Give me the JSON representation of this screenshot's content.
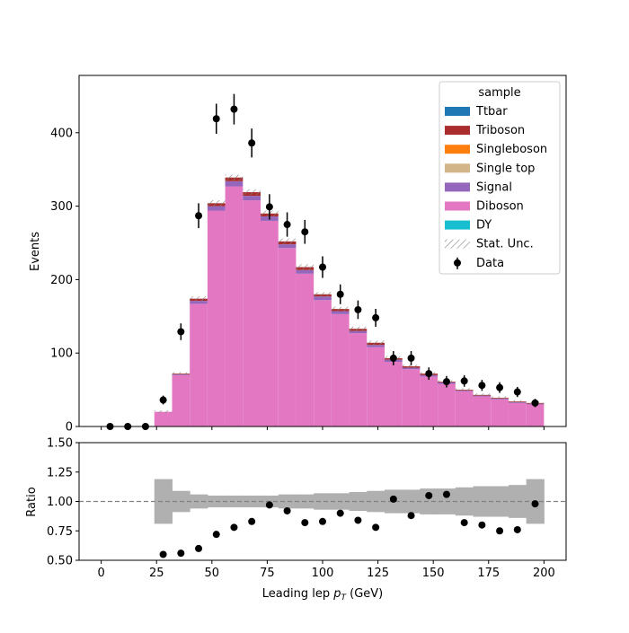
{
  "chart_data": [
    {
      "type": "bar",
      "stacked": true,
      "bin_edges": [
        0,
        8,
        16,
        24,
        32,
        40,
        48,
        56,
        64,
        72,
        80,
        88,
        96,
        104,
        112,
        120,
        128,
        136,
        144,
        152,
        160,
        168,
        176,
        184,
        192,
        200
      ],
      "xlabel": "",
      "ylabel": "Events",
      "xlim": [
        -10,
        210
      ],
      "ylim": [
        0,
        478
      ],
      "xticks": [
        0,
        25,
        50,
        75,
        100,
        125,
        150,
        175,
        200
      ],
      "yticks": [
        0,
        100,
        200,
        300,
        400
      ],
      "series": [
        {
          "name": "DY",
          "color": "#17becf",
          "values": [
            0,
            0,
            0,
            0,
            0,
            0,
            0,
            0,
            0,
            0,
            0,
            0,
            0,
            0,
            0,
            0,
            0,
            0,
            0,
            0,
            0,
            0,
            0,
            0,
            0
          ]
        },
        {
          "name": "Diboson",
          "color": "#e377c2",
          "values": [
            0,
            0,
            0,
            20,
            70,
            167,
            294,
            327,
            308,
            280,
            243,
            208,
            172,
            153,
            127,
            108,
            88,
            78,
            68,
            58,
            48,
            41,
            37,
            32,
            30
          ]
        },
        {
          "name": "Signal",
          "color": "#9467bd",
          "values": [
            0,
            0,
            0,
            0,
            1,
            4,
            6,
            7,
            6,
            6,
            5,
            5,
            5,
            4,
            3,
            3,
            3,
            2,
            2,
            2,
            1,
            1,
            1,
            1,
            1
          ]
        },
        {
          "name": "Single top",
          "color": "#d3b58a",
          "values": [
            0,
            0,
            0,
            0,
            0,
            0,
            0,
            0,
            0,
            0,
            0,
            0,
            0,
            0,
            0,
            0,
            0,
            0,
            0,
            0,
            0,
            0,
            0,
            0,
            0
          ]
        },
        {
          "name": "Singleboson",
          "color": "#ff7f0e",
          "values": [
            0,
            0,
            0,
            0,
            0,
            0,
            0,
            0,
            0,
            0,
            0,
            0,
            0,
            0,
            0,
            0,
            0,
            0,
            0,
            0,
            0,
            0,
            0,
            0,
            0
          ]
        },
        {
          "name": "Triboson",
          "color": "#aa2c2c",
          "values": [
            0,
            0,
            0,
            0,
            1,
            3,
            4,
            5,
            5,
            4,
            4,
            4,
            3,
            3,
            3,
            3,
            2,
            2,
            2,
            1,
            1,
            1,
            1,
            1,
            1
          ]
        },
        {
          "name": "Ttbar",
          "color": "#1f77b4",
          "values": [
            0,
            0,
            0,
            0,
            0,
            0,
            0,
            0,
            0,
            0,
            0,
            0,
            0,
            0,
            0,
            0,
            0,
            0,
            0,
            0,
            0,
            0,
            0,
            0,
            0
          ]
        }
      ],
      "stat_unc": [
        0,
        0,
        0,
        2,
        2,
        3,
        4,
        4,
        4,
        4,
        4,
        4,
        3,
        3,
        3,
        3,
        3,
        2,
        2,
        2,
        2,
        2,
        2,
        2,
        2
      ],
      "data": {
        "name": "Data",
        "x": [
          4,
          12,
          20,
          28,
          36,
          44,
          52,
          60,
          68,
          76,
          84,
          92,
          100,
          108,
          116,
          124,
          132,
          140,
          148,
          156,
          164,
          172,
          180,
          188,
          196
        ],
        "y": [
          0,
          0,
          0,
          36,
          129,
          287,
          419,
          432,
          386,
          299,
          275,
          265,
          217,
          180,
          159,
          148,
          93,
          93,
          72,
          61,
          62,
          56,
          53,
          47,
          32
        ]
      },
      "legend": {
        "title": "sample",
        "location": "upper right",
        "stat_label": "Stat. Unc."
      }
    },
    {
      "type": "scatter",
      "xlabel": "Leading lep p_T (GeV)",
      "ylabel": "Ratio",
      "xlim": [
        -10,
        210
      ],
      "ylim": [
        0.5,
        1.5
      ],
      "xticks": [
        0,
        25,
        50,
        75,
        100,
        125,
        150,
        175,
        200
      ],
      "yticks": [
        0.5,
        0.75,
        1.0,
        1.25,
        1.5
      ],
      "reference_line": 1.0,
      "ratio": {
        "x": [
          28,
          36,
          44,
          52,
          60,
          68,
          76,
          84,
          92,
          100,
          108,
          116,
          124,
          132,
          140,
          148,
          156,
          164,
          172,
          180,
          188,
          196
        ],
        "y": [
          0.55,
          0.56,
          0.6,
          0.72,
          0.78,
          0.83,
          0.97,
          0.92,
          0.82,
          0.83,
          0.9,
          0.84,
          0.78,
          1.02,
          0.88,
          1.05,
          1.06,
          0.82,
          0.8,
          0.75,
          0.76,
          0.98
        ]
      },
      "unc_band": [
        0,
        0,
        0,
        0.19,
        0.09,
        0.06,
        0.05,
        0.05,
        0.05,
        0.05,
        0.06,
        0.06,
        0.07,
        0.07,
        0.08,
        0.09,
        0.1,
        0.1,
        0.11,
        0.11,
        0.12,
        0.13,
        0.13,
        0.14,
        0.19
      ]
    }
  ],
  "axis": {
    "top_ylabel": "Events",
    "bottom_ylabel": "Ratio",
    "bottom_xlabel_main": "Leading lep ",
    "bottom_xlabel_sym": "p",
    "bottom_xlabel_sub": "T",
    "bottom_xlabel_unit": " (GeV)"
  },
  "colors": {
    "unc_band": "#b0b0b0",
    "data": "#000000",
    "ref_line": "#808080",
    "hatch": "#808080"
  }
}
